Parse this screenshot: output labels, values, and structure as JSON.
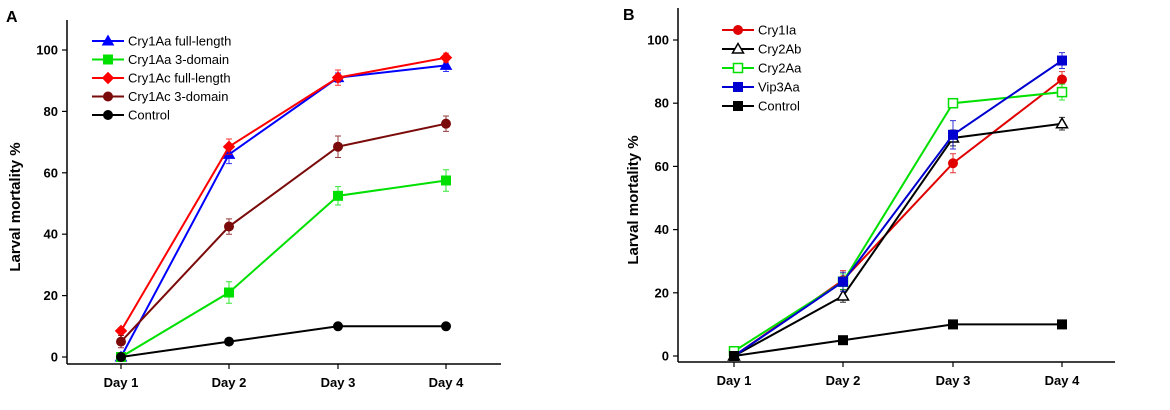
{
  "chart_data": [
    {
      "type": "line",
      "panel_label": "A",
      "ylabel": "Larval mortality %",
      "xlabel": "",
      "categories": [
        "Day 1",
        "Day 2",
        "Day 3",
        "Day 4"
      ],
      "ylim": [
        0,
        110
      ],
      "yticks": [
        0,
        20,
        40,
        60,
        80,
        100
      ],
      "legend_position": "top-left",
      "grid": false,
      "series": [
        {
          "name": "Cry1Aa full-length",
          "color": "#0000ff",
          "marker": "triangle-filled",
          "values": [
            0,
            66,
            91,
            95
          ],
          "errors": [
            0,
            3,
            1.5,
            2
          ]
        },
        {
          "name": "Cry1Aa 3-domain",
          "color": "#00e000",
          "marker": "square-filled",
          "values": [
            0,
            21,
            52.5,
            57.5
          ],
          "errors": [
            0,
            3.5,
            3,
            3.5
          ]
        },
        {
          "name": "Cry1Ac full-length",
          "color": "#ff0000",
          "marker": "diamond-filled",
          "values": [
            8.5,
            68.5,
            91,
            97.5
          ],
          "errors": [
            1,
            2.5,
            2.5,
            1.5
          ]
        },
        {
          "name": "Cry1Ac 3-domain",
          "color": "#7b0a0a",
          "marker": "circle-filled",
          "values": [
            5,
            42.5,
            68.5,
            76
          ],
          "errors": [
            2,
            2.5,
            3.5,
            2.5
          ]
        },
        {
          "name": "Control",
          "color": "#000000",
          "marker": "circle-filled",
          "values": [
            0,
            5,
            10,
            10
          ],
          "errors": [
            0,
            0,
            0,
            0
          ]
        }
      ]
    },
    {
      "type": "line",
      "panel_label": "B",
      "ylabel": "Larval mortality %",
      "xlabel": "",
      "categories": [
        "Day 1",
        "Day 2",
        "Day 3",
        "Day 4"
      ],
      "ylim": [
        0,
        110
      ],
      "yticks": [
        0,
        20,
        40,
        60,
        80,
        100
      ],
      "legend_position": "top-left",
      "grid": false,
      "series": [
        {
          "name": "Cry1Ia",
          "color": "#e00000",
          "marker": "circle-filled",
          "values": [
            0,
            24,
            61,
            87.5
          ],
          "errors": [
            0,
            3,
            3,
            2.5
          ]
        },
        {
          "name": "Cry2Ab",
          "color": "#000000",
          "marker": "triangle-open",
          "values": [
            0,
            19,
            69,
            73.5
          ],
          "errors": [
            0,
            2,
            2.5,
            2
          ]
        },
        {
          "name": "Cry2Aa",
          "color": "#00e000",
          "marker": "square-open",
          "values": [
            1.5,
            23.5,
            80,
            83.5
          ],
          "errors": [
            0,
            2.5,
            1.5,
            2.5
          ]
        },
        {
          "name": "Vip3Aa",
          "color": "#0000d0",
          "marker": "square-filled",
          "values": [
            0,
            23.5,
            70,
            93.5
          ],
          "errors": [
            0,
            3,
            4.5,
            2.5
          ]
        },
        {
          "name": "Control",
          "color": "#000000",
          "marker": "square-filled",
          "values": [
            0,
            5,
            10,
            10
          ],
          "errors": [
            0,
            0,
            0,
            0
          ]
        }
      ]
    }
  ]
}
